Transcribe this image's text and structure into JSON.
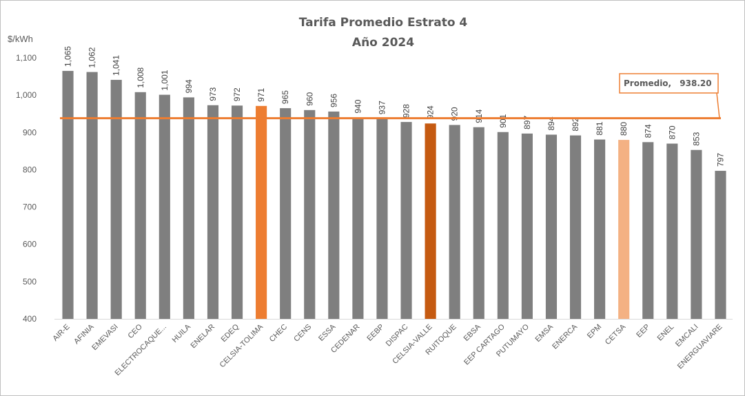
{
  "chart_data": {
    "type": "bar",
    "title": "Tarifa Promedio Estrato 4",
    "subtitle": "Año 2024",
    "ylabel": "$/kWh",
    "xlabel": "",
    "ylim": [
      400,
      1100
    ],
    "yticks": [
      400,
      500,
      600,
      700,
      800,
      900,
      1000,
      1100
    ],
    "ytick_labels": [
      "400",
      "500",
      "600",
      "700",
      "800",
      "900",
      "1,000",
      "1,100"
    ],
    "categories": [
      "AIR-E",
      "AFINIA",
      "EMEVASI",
      "CEO",
      "ELECTROCAQUE...",
      "HUILA",
      "ENELAR",
      "EDEQ",
      "CELSIA-TOLIMA",
      "CHEC",
      "CENS",
      "ESSA",
      "CEDENAR",
      "EEBP",
      "DISPAC",
      "CELSIA-VALLE",
      "RUITOQUE",
      "EBSA",
      "EEP CARTAGO",
      "PUTUMAYO",
      "EMSA",
      "ENERCA",
      "EPM",
      "CETSA",
      "EEP",
      "ENEL",
      "EMCALI",
      "ENERGUAVIARE"
    ],
    "values": [
      1065,
      1062,
      1041,
      1008,
      1001,
      994,
      973,
      972,
      971,
      965,
      960,
      956,
      940,
      937,
      928,
      924,
      920,
      914,
      901,
      897,
      894,
      892,
      881,
      880,
      874,
      870,
      853,
      797
    ],
    "value_labels": [
      "1,065",
      "1,062",
      "1,041",
      "1,008",
      "1,001",
      "994",
      "973",
      "972",
      "971",
      "965",
      "960",
      "956",
      "940",
      "937",
      "928",
      "924",
      "920",
      "914",
      "901",
      "897",
      "894",
      "892",
      "881",
      "880",
      "874",
      "870",
      "853",
      "797"
    ],
    "bar_colors": [
      "#7f7f7f",
      "#7f7f7f",
      "#7f7f7f",
      "#7f7f7f",
      "#7f7f7f",
      "#7f7f7f",
      "#7f7f7f",
      "#7f7f7f",
      "#ed7d31",
      "#7f7f7f",
      "#7f7f7f",
      "#7f7f7f",
      "#7f7f7f",
      "#7f7f7f",
      "#7f7f7f",
      "#c55a11",
      "#7f7f7f",
      "#7f7f7f",
      "#7f7f7f",
      "#7f7f7f",
      "#7f7f7f",
      "#7f7f7f",
      "#7f7f7f",
      "#f4b183",
      "#7f7f7f",
      "#7f7f7f",
      "#7f7f7f",
      "#7f7f7f"
    ],
    "average": {
      "value": 938.2,
      "label": "Promedio,",
      "value_label": "938.20",
      "color": "#ed7d31"
    },
    "grid": false
  }
}
